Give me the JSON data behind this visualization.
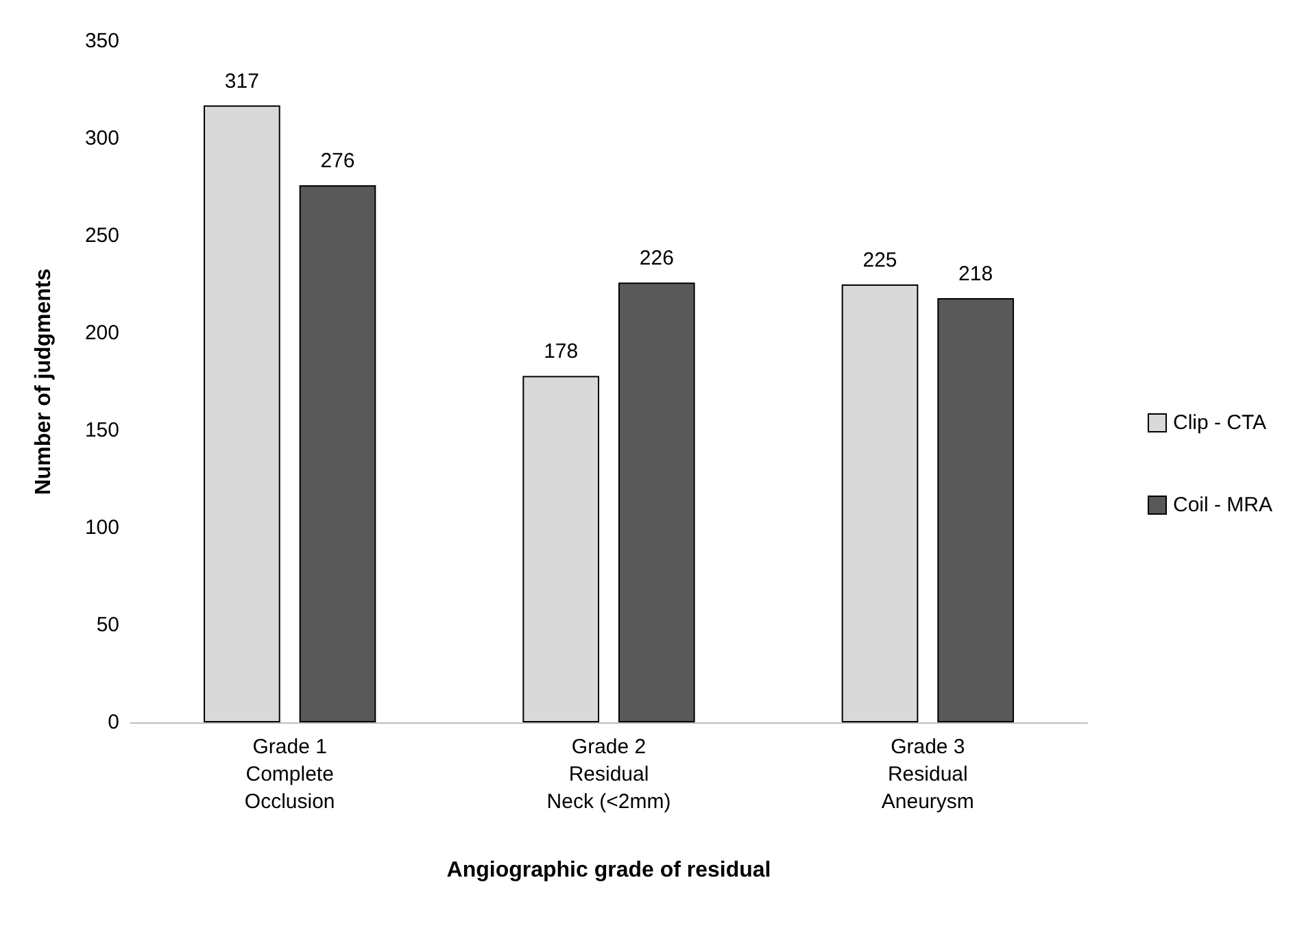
{
  "chart_data": {
    "type": "bar",
    "xlabel": "Angiographic grade of residual",
    "ylabel": "Number of judgments",
    "categories": [
      "Grade 1\nComplete\nOcclusion",
      "Grade 2\nResidual\nNeck (<2mm)",
      "Grade 3\nResidual\nAneurysm"
    ],
    "series": [
      {
        "name": "Clip - CTA",
        "color": "#d9d9d9",
        "values": [
          317,
          178,
          225
        ]
      },
      {
        "name": "Coil - MRA",
        "color": "#595959",
        "values": [
          276,
          226,
          218
        ]
      }
    ],
    "ylim": [
      0,
      350
    ],
    "yticks": [
      0,
      50,
      100,
      150,
      200,
      250,
      300,
      350
    ],
    "grid": false,
    "legend": "right",
    "data_labels": true
  }
}
